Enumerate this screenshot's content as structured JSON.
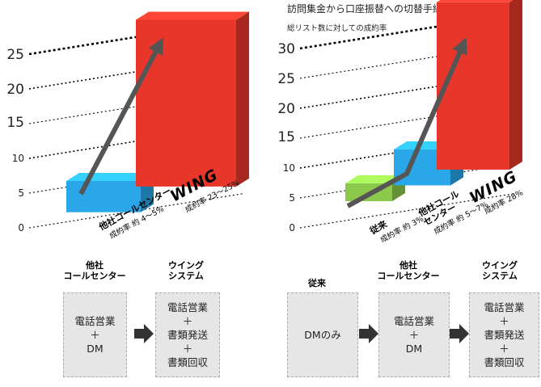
{
  "header": {
    "title": "訪問集金から口座振替への切替手続き",
    "subtitle": "総リスト数に対しての成約率"
  },
  "chart_data": [
    {
      "type": "bar",
      "categories": [
        "他社コールセンター",
        "WING"
      ],
      "rates": [
        "成約率 約 4〜5%",
        "成約率 23〜25%"
      ],
      "values": [
        4.5,
        24
      ],
      "ylim": [
        0,
        25
      ],
      "yticks": [
        "0",
        "5",
        "10",
        "15",
        "20",
        "25"
      ],
      "colors": [
        "#2aa7e8",
        "#e8372a"
      ]
    },
    {
      "type": "bar",
      "categories": [
        "従来",
        "他社コール\nセンター",
        "WING"
      ],
      "rates": [
        "成約率 約 3%",
        "成約率 約 5〜7%",
        "成約率 28%"
      ],
      "values": [
        3,
        6,
        28
      ],
      "ylim": [
        0,
        30
      ],
      "yticks": [
        "0",
        "5",
        "10",
        "15",
        "20",
        "25",
        "30"
      ],
      "colors": [
        "#8cc84b",
        "#2aa7e8",
        "#e8372a"
      ]
    }
  ],
  "flows": {
    "left": {
      "labels": [
        "他社\nコールセンター",
        "ウイング\nシステム"
      ],
      "boxes": [
        "電話営業\n＋\nDM",
        "電話営業\n＋\n書類発送\n＋\n書類回収"
      ]
    },
    "right": {
      "labels": [
        "従来",
        "他社\nコールセンター",
        "ウイング\nシステム"
      ],
      "boxes": [
        "DMのみ",
        "電話営業\n＋\nDM",
        "電話営業\n＋\n書類発送\n＋\n書類回収"
      ]
    }
  }
}
